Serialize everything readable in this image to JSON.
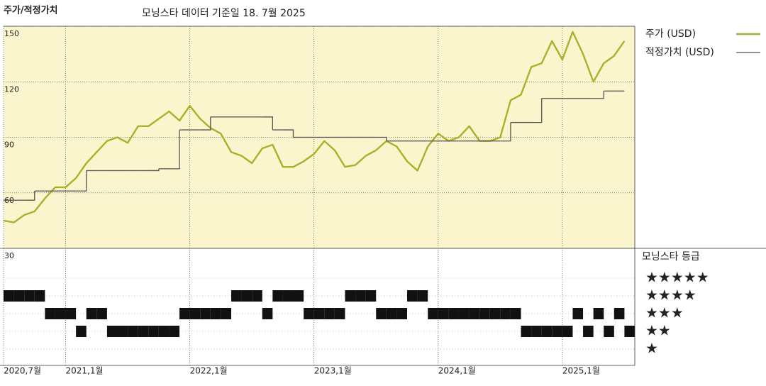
{
  "chart_data": [
    {
      "type": "line",
      "title": "주가/적정가치",
      "subtitle": "모닝스타 데이터 기준일 18. 7월 2025",
      "x": [
        "2020-07",
        "2020-08",
        "2020-09",
        "2020-10",
        "2020-11",
        "2020-12",
        "2021-01",
        "2021-02",
        "2021-03",
        "2021-04",
        "2021-05",
        "2021-06",
        "2021-07",
        "2021-08",
        "2021-09",
        "2021-10",
        "2021-11",
        "2021-12",
        "2022-01",
        "2022-02",
        "2022-03",
        "2022-04",
        "2022-05",
        "2022-06",
        "2022-07",
        "2022-08",
        "2022-09",
        "2022-10",
        "2022-11",
        "2022-12",
        "2023-01",
        "2023-02",
        "2023-03",
        "2023-04",
        "2023-05",
        "2023-06",
        "2023-07",
        "2023-08",
        "2023-09",
        "2023-10",
        "2023-11",
        "2023-12",
        "2024-01",
        "2024-02",
        "2024-03",
        "2024-04",
        "2024-05",
        "2024-06",
        "2024-07",
        "2024-08",
        "2024-09",
        "2024-10",
        "2024-11",
        "2024-12",
        "2025-01",
        "2025-02",
        "2025-03",
        "2025-04",
        "2025-05",
        "2025-06",
        "2025-07"
      ],
      "series": [
        {
          "name": "주가 (USD)",
          "color": "#a9b02a",
          "style": "line",
          "values": [
            45,
            44,
            48,
            50,
            57,
            63,
            63,
            68,
            76,
            82,
            88,
            90,
            87,
            96,
            96,
            100,
            104,
            99,
            107,
            100,
            95,
            92,
            82,
            80,
            76,
            84,
            86,
            74,
            74,
            77,
            81,
            88,
            83,
            74,
            75,
            80,
            83,
            88,
            85,
            77,
            72,
            85,
            92,
            88,
            90,
            96,
            88,
            88,
            90,
            110,
            113,
            128,
            130,
            142,
            132,
            147,
            135,
            120,
            130,
            134,
            142
          ]
        },
        {
          "name": "적정가치 (USD)",
          "color": "#555555",
          "style": "step",
          "values": [
            56,
            56,
            56,
            61,
            61,
            61,
            61,
            61,
            72,
            72,
            72,
            72,
            72,
            72,
            72,
            73,
            73,
            94,
            94,
            94,
            101,
            101,
            101,
            101,
            101,
            101,
            94,
            94,
            90,
            90,
            90,
            90,
            90,
            90,
            90,
            90,
            90,
            88,
            88,
            88,
            88,
            88,
            88,
            88,
            88,
            88,
            88,
            88,
            88,
            98,
            98,
            98,
            111,
            111,
            111,
            111,
            111,
            111,
            115,
            115,
            115
          ]
        }
      ],
      "xlim": [
        "2020-07",
        "2025-08"
      ],
      "xticks": [
        {
          "value": "2020-07",
          "label": "2020,7월"
        },
        {
          "value": "2021-01",
          "label": "2021,1월"
        },
        {
          "value": "2022-01",
          "label": "2022,1월"
        },
        {
          "value": "2023-01",
          "label": "2023,1월"
        },
        {
          "value": "2024-01",
          "label": "2024,1월"
        },
        {
          "value": "2025-01",
          "label": "2025,1월"
        }
      ],
      "ylim": [
        30,
        150
      ],
      "yticks": [
        30,
        60,
        90,
        120,
        150
      ],
      "grid": true,
      "background": "#faf5cc"
    },
    {
      "type": "strip",
      "title": "모닝스타 등급",
      "color": "#111111",
      "x": [
        "2020-07",
        "2020-08",
        "2020-09",
        "2020-10",
        "2020-11",
        "2020-12",
        "2021-01",
        "2021-02",
        "2021-03",
        "2021-04",
        "2021-05",
        "2021-06",
        "2021-07",
        "2021-08",
        "2021-09",
        "2021-10",
        "2021-11",
        "2021-12",
        "2022-01",
        "2022-02",
        "2022-03",
        "2022-04",
        "2022-05",
        "2022-06",
        "2022-07",
        "2022-08",
        "2022-09",
        "2022-10",
        "2022-11",
        "2022-12",
        "2023-01",
        "2023-02",
        "2023-03",
        "2023-04",
        "2023-05",
        "2023-06",
        "2023-07",
        "2023-08",
        "2023-09",
        "2023-10",
        "2023-11",
        "2023-12",
        "2024-01",
        "2024-02",
        "2024-03",
        "2024-04",
        "2024-05",
        "2024-06",
        "2024-07",
        "2024-08",
        "2024-09",
        "2024-10",
        "2024-11",
        "2024-12",
        "2025-01",
        "2025-02",
        "2025-03",
        "2025-04",
        "2025-05",
        "2025-06",
        "2025-07"
      ],
      "values": [
        4,
        4,
        4,
        4,
        3,
        3,
        3,
        2,
        3,
        3,
        2,
        2,
        2,
        2,
        2,
        2,
        2,
        3,
        3,
        3,
        3,
        3,
        4,
        4,
        4,
        3,
        4,
        4,
        4,
        3,
        3,
        3,
        3,
        4,
        4,
        4,
        3,
        3,
        3,
        4,
        4,
        3,
        3,
        3,
        3,
        3,
        3,
        3,
        3,
        3,
        2,
        2,
        2,
        2,
        2,
        3,
        2,
        3,
        2,
        3,
        2
      ],
      "ylim": [
        0.5,
        5.5
      ],
      "yticks": [
        {
          "value": 5,
          "label": "★★★★★"
        },
        {
          "value": 4,
          "label": "★★★★"
        },
        {
          "value": 3,
          "label": "★★★"
        },
        {
          "value": 2,
          "label": "★★"
        },
        {
          "value": 1,
          "label": "★"
        }
      ]
    }
  ]
}
